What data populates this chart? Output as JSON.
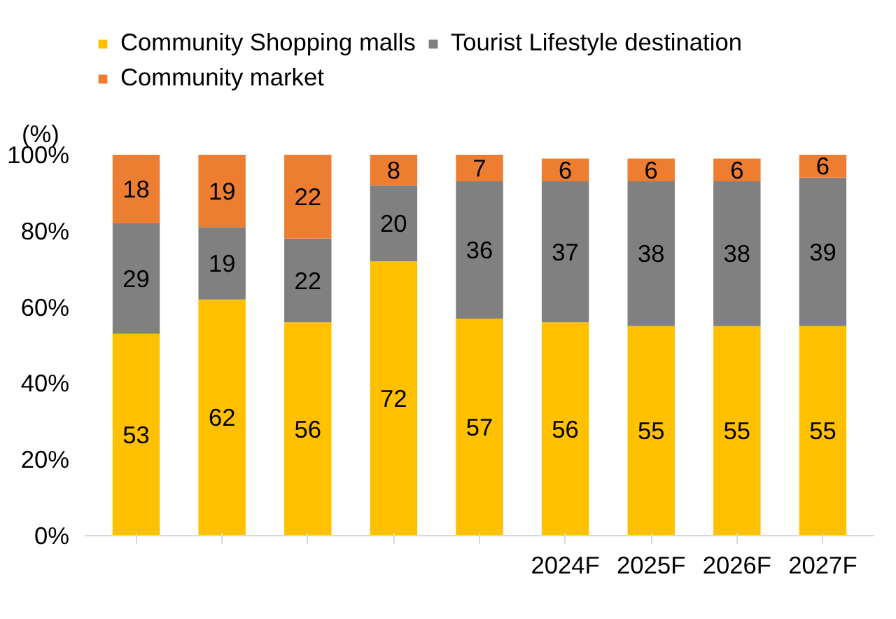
{
  "chart_data": {
    "type": "bar",
    "stacked": true,
    "ylabel": "(%)",
    "categories": [
      null,
      null,
      null,
      null,
      null,
      "2024F",
      "2025F",
      "2026F",
      "2027F"
    ],
    "series": [
      {
        "name": "Community Shopping malls",
        "color": "#ffc000",
        "values": [
          53,
          62,
          56,
          72,
          57,
          56,
          55,
          55,
          55
        ]
      },
      {
        "name": "Tourist Lifestyle destination",
        "color": "#808080",
        "values": [
          29,
          19,
          22,
          20,
          36,
          37,
          38,
          38,
          39
        ]
      },
      {
        "name": "Community market",
        "color": "#ed7d31",
        "values": [
          18,
          19,
          22,
          8,
          7,
          6,
          6,
          6,
          6
        ]
      }
    ],
    "ylim": [
      0,
      100
    ],
    "yticks": [
      {
        "value": 0,
        "label": "0%"
      },
      {
        "value": 20,
        "label": "20%"
      },
      {
        "value": 40,
        "label": "40%"
      },
      {
        "value": 60,
        "label": "60%"
      },
      {
        "value": 80,
        "label": "80%"
      },
      {
        "value": 100,
        "label": "100%"
      }
    ],
    "data_labels": true,
    "grid": false,
    "legend": "top"
  }
}
